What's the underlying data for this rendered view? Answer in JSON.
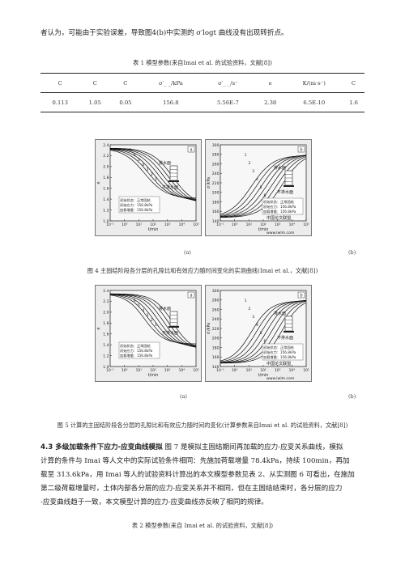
{
  "para_top": "者认为，可能由于实验误差，导致图4(b)中实测的 σ′logt 曲线没有出现转折点。",
  "table1": {
    "caption": "表 1 模型参数(来自Imai et al. 的试验资料，文献[8])",
    "headers": [
      "C",
      "C",
      "C",
      "σ′_ _/kPa",
      "σ′_ _/s⁻",
      "e",
      "K/(m·s⁻)",
      "C"
    ],
    "values": [
      "0.113",
      "1.05",
      "0.05",
      "156.8",
      "5.56E-7",
      "2.38",
      "6.5E-10",
      "1.6"
    ]
  },
  "fig4": {
    "caption": "图 4 主固结阶段各分层的孔隙比和有效应力随时间变化的实测曲线(Imai et al.，文献[8])",
    "sub_a": "(a)",
    "sub_b": "(b)",
    "a": {
      "tag": "a",
      "y_ticks": [
        "2.4",
        "2.2",
        "2.0",
        "1.8",
        "1.6",
        "1.4",
        "1.2",
        "1.0"
      ],
      "x_ticks": [
        "10⁻¹",
        "10⁰",
        "10¹",
        "10²",
        "10³",
        "10⁴",
        "10⁵"
      ],
      "ylabel": "e",
      "xlabel": "t/min",
      "curve_labels": [
        "7",
        "6",
        "5",
        "4",
        "3",
        "2",
        "1"
      ],
      "drain_top": "排水面",
      "drain_bottom": "不排水面",
      "state_lines": [
        "初始状态：正常固结",
        "初始应力：156.8kPa",
        "加载增量：156.8kPa"
      ]
    },
    "b": {
      "tag": "b",
      "y_ticks": [
        "300",
        "280",
        "260",
        "240",
        "220",
        "200",
        "180",
        "160",
        "140"
      ],
      "x_ticks": [
        "10⁻¹",
        "10⁰",
        "10¹",
        "10²",
        "10³",
        "10⁴",
        "10⁵"
      ],
      "ylabel": "σ′/kPa",
      "xlabel": "t/min",
      "curve_labels": [
        "1",
        "2",
        "3",
        "4",
        "5",
        "6",
        "7"
      ],
      "drain_top": "排水面",
      "drain_bottom": "不排水面",
      "state_lines": [
        "初始状态：正常固结",
        "初始应力：156.8kPa",
        "加载增量：156.8kPa"
      ],
      "watermark": "中国论文联盟",
      "watermark_url": "www.lwlm.com"
    }
  },
  "fig5": {
    "caption": "图 5 计算的主固结阶段各分层的孔隙比和有效应力随时间的变化(计算参数来自Imai et al. 的试验资料，文献[8])",
    "sub_a": "(a)",
    "sub_b": "(b)",
    "a": {
      "tag": "a",
      "y_ticks": [
        "2.4",
        "2.2",
        "2.0",
        "1.8",
        "1.6",
        "1.4",
        "1.2",
        "1.0"
      ],
      "x_ticks": [
        "10⁻¹",
        "10⁰",
        "10¹",
        "10²",
        "10³",
        "10⁴",
        "10⁵"
      ],
      "ylabel": "e",
      "xlabel": "t/min",
      "curve_labels": [
        "7",
        "6",
        "5",
        "4",
        "3",
        "2",
        "1"
      ],
      "drain_top": "排水面",
      "drain_bottom": "不排水面",
      "state_lines": [
        "初始状态：正常固结",
        "初始应力：156.8kPa",
        "加载增量：156.8kPa"
      ]
    },
    "b": {
      "tag": "b",
      "y_ticks": [
        "300",
        "280",
        "260",
        "240",
        "220",
        "200",
        "180",
        "160",
        "140"
      ],
      "x_ticks": [
        "10⁻¹",
        "10⁰",
        "10¹",
        "10²",
        "10³",
        "10⁴",
        "10⁵"
      ],
      "ylabel": "σ′/kPa",
      "xlabel": "t/min",
      "curve_labels": [
        "1",
        "2",
        "3",
        "4",
        "5",
        "6",
        "7"
      ],
      "drain_top": "排水面",
      "drain_bottom": "不排水面",
      "state_lines": [
        "初始状态：正常固结",
        "初始应力：156.8kPa",
        "加载增量：156.8kPa"
      ],
      "watermark": "中国论文联盟",
      "watermark_url": "www.lwlm.com"
    }
  },
  "section43": {
    "heading": "4.3 多级加载条件下应力-应变曲线模拟",
    "line1": " 图 7 是模拟主固结期间再加载的应力-应变关系曲线，模拟",
    "line2": "计算的条件与 Imai 等人文中的实际试验条件相同：先施加荷载增量 78.4kPa，持续 100min，再加",
    "line3": "载至 313.6kPa，用 Imai 等人的试验资料计算出的本文模型参数见表 2、从实测图 6 可看出，在施加",
    "line4": "第二级荷载增量时，土体内部各分层的应力-应变关系并不相同，但在主固结结束时，各分层的应力",
    "line5": "-应变曲线趋于一致，本文模型计算的应力-应变曲线亦反映了相同的规律。"
  },
  "table2_caption": "表 2 模型参数(来自 Imai et al. 的试验资料，文献[8])"
}
